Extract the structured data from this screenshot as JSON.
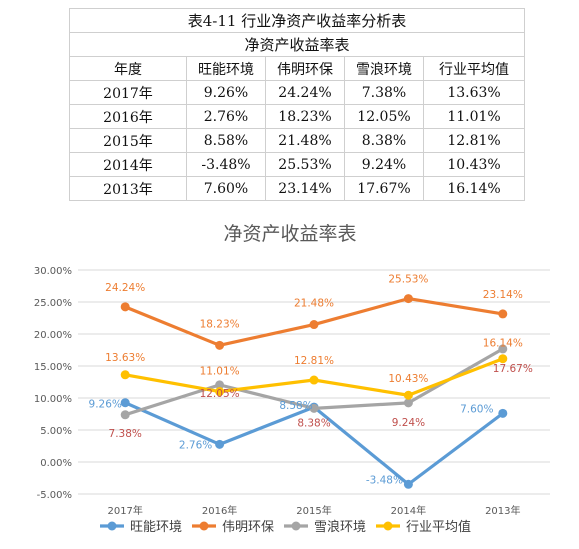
{
  "table": {
    "title": "表4-11 行业净资产收益率分析表",
    "subtitle": "净资产收益率表",
    "headers": [
      "年度",
      "旺能环境",
      "伟明环保",
      "雪浪环境",
      "行业平均值"
    ],
    "rows": [
      [
        "2017年",
        "9.26%",
        "24.24%",
        "7.38%",
        "13.63%"
      ],
      [
        "2016年",
        "2.76%",
        "18.23%",
        "12.05%",
        "11.01%"
      ],
      [
        "2015年",
        "8.58%",
        "21.48%",
        "8.38%",
        "12.81%"
      ],
      [
        "2014年",
        "-3.48%",
        "25.53%",
        "9.24%",
        "10.43%"
      ],
      [
        "2013年",
        "7.60%",
        "23.14%",
        "17.67%",
        "16.14%"
      ]
    ]
  },
  "chart_data": {
    "type": "line",
    "title": "净资产收益率表",
    "categories": [
      "2017年",
      "2016年",
      "2015年",
      "2014年",
      "2013年"
    ],
    "ylim": [
      -5,
      30
    ],
    "yticks": [
      "-5.00%",
      "0.00%",
      "5.00%",
      "10.00%",
      "15.00%",
      "20.00%",
      "25.00%",
      "30.00%"
    ],
    "grid": true,
    "legend_position": "bottom",
    "series": [
      {
        "name": "旺能环境",
        "color": "#5B9BD5",
        "values": [
          9.26,
          2.76,
          8.58,
          -3.48,
          7.6
        ],
        "labels": [
          "9.26%",
          "2.76%",
          "8.58%",
          "-3.48%",
          "7.60%"
        ]
      },
      {
        "name": "伟明环保",
        "color": "#ED7D31",
        "values": [
          24.24,
          18.23,
          21.48,
          25.53,
          23.14
        ],
        "labels": [
          "24.24%",
          "18.23%",
          "21.48%",
          "25.53%",
          "23.14%"
        ]
      },
      {
        "name": "雪浪环境",
        "color": "#A5A5A5",
        "values": [
          7.38,
          12.05,
          8.38,
          9.24,
          17.67
        ],
        "labels": [
          "7.38%",
          "12.05%",
          "8.38%",
          "9.24%",
          "17.67%"
        ]
      },
      {
        "name": "行业平均值",
        "color": "#FFC000",
        "values": [
          13.63,
          11.01,
          12.81,
          10.43,
          16.14
        ],
        "labels": [
          "13.63%",
          "11.01%",
          "12.81%",
          "10.43%",
          "16.14%"
        ]
      }
    ]
  }
}
